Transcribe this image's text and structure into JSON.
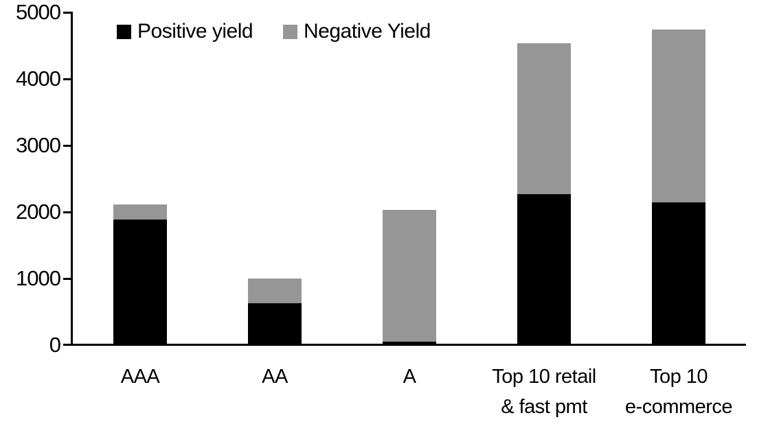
{
  "chart_data": {
    "type": "bar",
    "stacked": true,
    "title": "",
    "xlabel": "",
    "ylabel": "",
    "grid": false,
    "legend_position": "top",
    "ylim": [
      0,
      5000
    ],
    "yticks": [
      0,
      1000,
      2000,
      3000,
      4000,
      5000
    ],
    "ytick_labels": [
      "0",
      "1000",
      "2000",
      "3000",
      "4000",
      "5000"
    ],
    "categories": [
      "AAA",
      "AA",
      "A",
      "Top 10 retail\n& fast pmt",
      "Top 10\ne-commerce"
    ],
    "series": [
      {
        "name": "Positive yield",
        "color": "#000000",
        "values": [
          1890,
          630,
          50,
          2270,
          2140
        ]
      },
      {
        "name": "Negative Yield",
        "color": "#969696",
        "values": [
          220,
          375,
          1980,
          2270,
          2600
        ]
      }
    ],
    "totals": [
      2110,
      1005,
      2030,
      4540,
      4740
    ]
  },
  "colors": {
    "background": "#ffffff",
    "axis": "#000000",
    "positive_series": "#000000",
    "negative_series": "#969696"
  }
}
